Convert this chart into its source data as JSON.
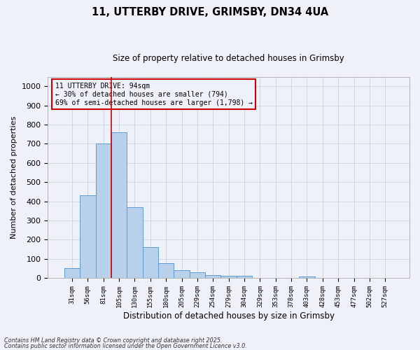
{
  "title": "11, UTTERBY DRIVE, GRIMSBY, DN34 4UA",
  "subtitle": "Size of property relative to detached houses in Grimsby",
  "xlabel": "Distribution of detached houses by size in Grimsby",
  "ylabel": "Number of detached properties",
  "categories": [
    "31sqm",
    "56sqm",
    "81sqm",
    "105sqm",
    "130sqm",
    "155sqm",
    "180sqm",
    "205sqm",
    "229sqm",
    "254sqm",
    "279sqm",
    "304sqm",
    "329sqm",
    "353sqm",
    "378sqm",
    "403sqm",
    "428sqm",
    "453sqm",
    "477sqm",
    "502sqm",
    "527sqm"
  ],
  "values": [
    50,
    430,
    700,
    760,
    370,
    160,
    75,
    40,
    30,
    15,
    12,
    10,
    0,
    0,
    0,
    8,
    0,
    0,
    0,
    0,
    0
  ],
  "bar_color": "#b8d0ea",
  "bar_edge_color": "#5b9bd5",
  "grid_color": "#c8d4e8",
  "vline_x": 2.5,
  "vline_color": "#cc0000",
  "annotation_title": "11 UTTERBY DRIVE: 94sqm",
  "annotation_line1": "← 30% of detached houses are smaller (794)",
  "annotation_line2": "69% of semi-detached houses are larger (1,798) →",
  "annotation_box_color": "#cc0000",
  "ylim": [
    0,
    1050
  ],
  "yticks": [
    0,
    100,
    200,
    300,
    400,
    500,
    600,
    700,
    800,
    900,
    1000
  ],
  "footer_line1": "Contains HM Land Registry data © Crown copyright and database right 2025.",
  "footer_line2": "Contains public sector information licensed under the Open Government Licence v3.0.",
  "background_color": "#eef2f8",
  "plot_bg_color": "#eef2f8"
}
